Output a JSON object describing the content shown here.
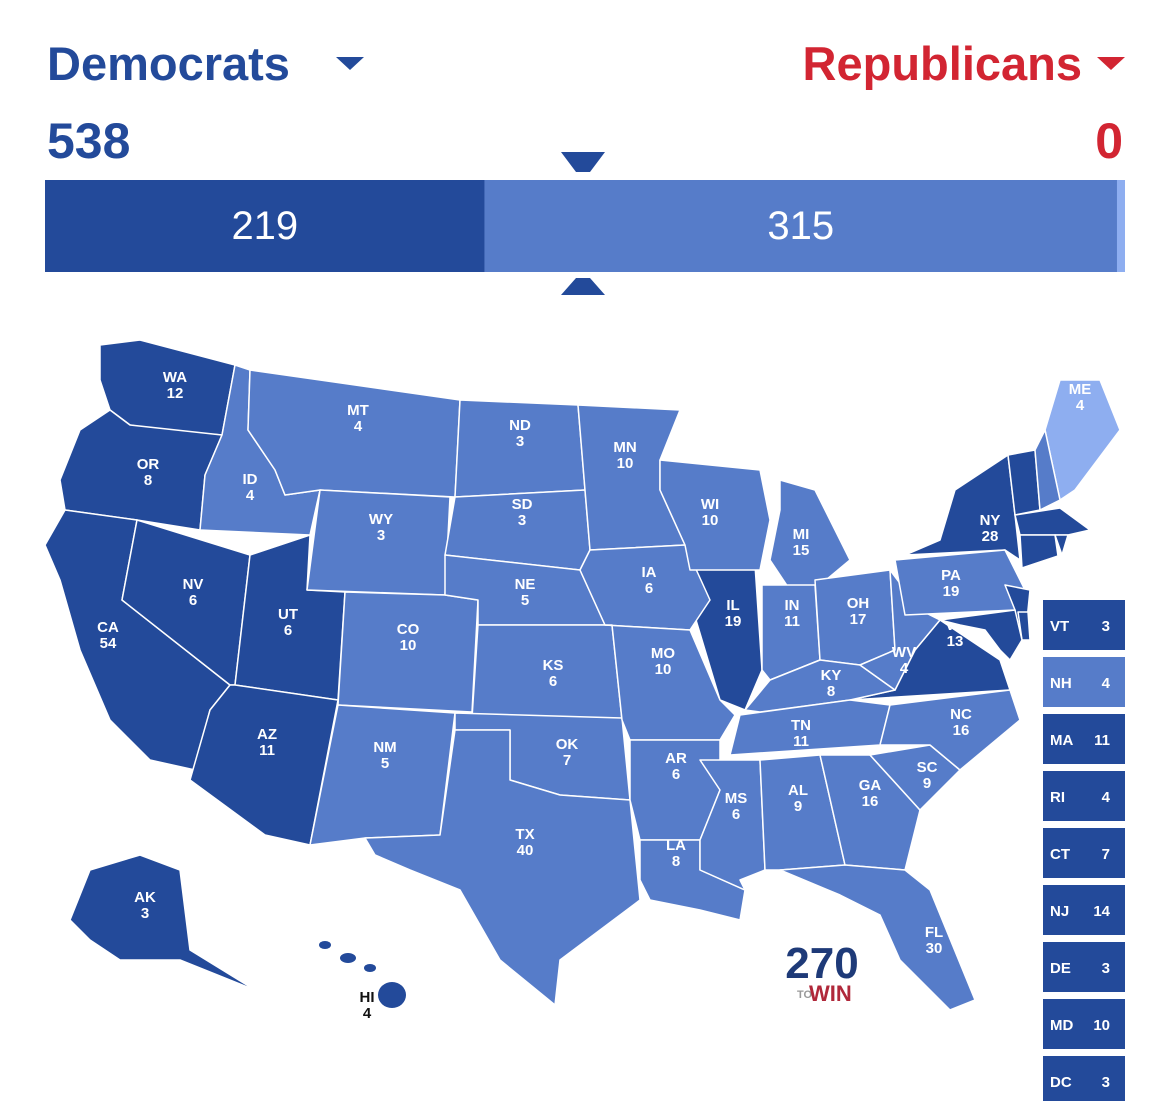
{
  "header": {
    "left": {
      "party": "Democrats",
      "total": 538,
      "color": "#234a9a"
    },
    "right": {
      "party": "Republicans",
      "total": 0,
      "color": "#d22532"
    }
  },
  "bar": {
    "segments": [
      {
        "value": 219,
        "color": "#234a9a"
      },
      {
        "value": 315,
        "color": "#567cc9"
      }
    ],
    "remainder_color": "#8eaef0"
  },
  "states": [
    {
      "abbr": "WA",
      "votes": 12,
      "color": "#234a9a"
    },
    {
      "abbr": "OR",
      "votes": 8,
      "color": "#234a9a"
    },
    {
      "abbr": "CA",
      "votes": 54,
      "color": "#234a9a"
    },
    {
      "abbr": "NV",
      "votes": 6,
      "color": "#234a9a"
    },
    {
      "abbr": "UT",
      "votes": 6,
      "color": "#234a9a"
    },
    {
      "abbr": "AZ",
      "votes": 11,
      "color": "#234a9a"
    },
    {
      "abbr": "AK",
      "votes": 3,
      "color": "#234a9a"
    },
    {
      "abbr": "HI",
      "votes": 4,
      "color": "#234a9a"
    },
    {
      "abbr": "IL",
      "votes": 19,
      "color": "#234a9a"
    },
    {
      "abbr": "NY",
      "votes": 28,
      "color": "#234a9a"
    },
    {
      "abbr": "VA",
      "votes": 13,
      "color": "#234a9a"
    },
    {
      "abbr": "ID",
      "votes": 4,
      "color": "#567cc9"
    },
    {
      "abbr": "MT",
      "votes": 4,
      "color": "#567cc9"
    },
    {
      "abbr": "WY",
      "votes": 3,
      "color": "#567cc9"
    },
    {
      "abbr": "CO",
      "votes": 10,
      "color": "#567cc9"
    },
    {
      "abbr": "NM",
      "votes": 5,
      "color": "#567cc9"
    },
    {
      "abbr": "ND",
      "votes": 3,
      "color": "#567cc9"
    },
    {
      "abbr": "SD",
      "votes": 3,
      "color": "#567cc9"
    },
    {
      "abbr": "NE",
      "votes": 5,
      "color": "#567cc9"
    },
    {
      "abbr": "KS",
      "votes": 6,
      "color": "#567cc9"
    },
    {
      "abbr": "OK",
      "votes": 7,
      "color": "#567cc9"
    },
    {
      "abbr": "TX",
      "votes": 40,
      "color": "#567cc9"
    },
    {
      "abbr": "MN",
      "votes": 10,
      "color": "#567cc9"
    },
    {
      "abbr": "IA",
      "votes": 6,
      "color": "#567cc9"
    },
    {
      "abbr": "MO",
      "votes": 10,
      "color": "#567cc9"
    },
    {
      "abbr": "AR",
      "votes": 6,
      "color": "#567cc9"
    },
    {
      "abbr": "LA",
      "votes": 8,
      "color": "#567cc9"
    },
    {
      "abbr": "WI",
      "votes": 10,
      "color": "#567cc9"
    },
    {
      "abbr": "MI",
      "votes": 15,
      "color": "#567cc9"
    },
    {
      "abbr": "IN",
      "votes": 11,
      "color": "#567cc9"
    },
    {
      "abbr": "OH",
      "votes": 17,
      "color": "#567cc9"
    },
    {
      "abbr": "KY",
      "votes": 8,
      "color": "#567cc9"
    },
    {
      "abbr": "TN",
      "votes": 11,
      "color": "#567cc9"
    },
    {
      "abbr": "MS",
      "votes": 6,
      "color": "#567cc9"
    },
    {
      "abbr": "AL",
      "votes": 9,
      "color": "#567cc9"
    },
    {
      "abbr": "GA",
      "votes": 16,
      "color": "#567cc9"
    },
    {
      "abbr": "FL",
      "votes": 30,
      "color": "#567cc9"
    },
    {
      "abbr": "SC",
      "votes": 9,
      "color": "#567cc9"
    },
    {
      "abbr": "NC",
      "votes": 16,
      "color": "#567cc9"
    },
    {
      "abbr": "WV",
      "votes": 4,
      "color": "#567cc9"
    },
    {
      "abbr": "PA",
      "votes": 19,
      "color": "#567cc9"
    },
    {
      "abbr": "ME",
      "votes": 4,
      "color": "#8eaef0"
    }
  ],
  "small_states": [
    {
      "abbr": "VT",
      "votes": 3,
      "color": "#234a9a"
    },
    {
      "abbr": "NH",
      "votes": 4,
      "color": "#567cc9"
    },
    {
      "abbr": "MA",
      "votes": 11,
      "color": "#234a9a"
    },
    {
      "abbr": "RI",
      "votes": 4,
      "color": "#234a9a"
    },
    {
      "abbr": "CT",
      "votes": 7,
      "color": "#234a9a"
    },
    {
      "abbr": "NJ",
      "votes": 14,
      "color": "#234a9a"
    },
    {
      "abbr": "DE",
      "votes": 3,
      "color": "#234a9a"
    },
    {
      "abbr": "MD",
      "votes": 10,
      "color": "#234a9a"
    },
    {
      "abbr": "DC",
      "votes": 3,
      "color": "#234a9a"
    }
  ],
  "logo": {
    "number": "270",
    "to": "TO",
    "win": "WIN"
  }
}
